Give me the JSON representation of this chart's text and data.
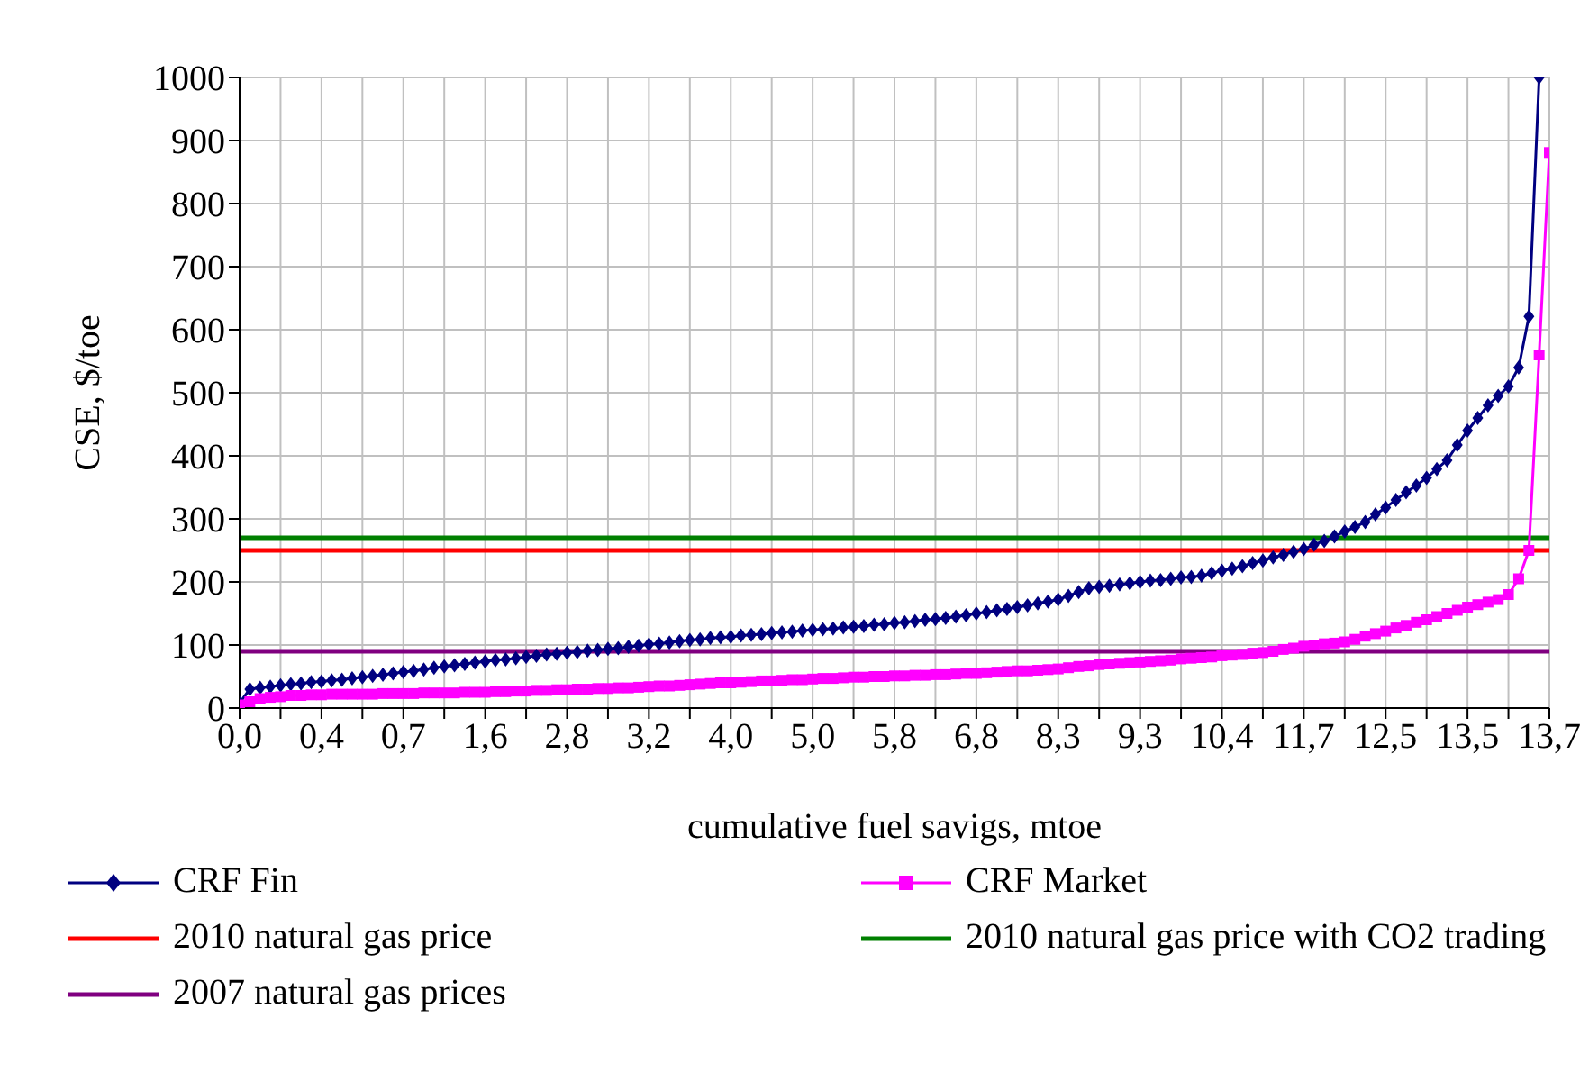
{
  "chart_data": {
    "type": "line",
    "categories": [
      "0,0",
      null,
      null,
      null,
      null,
      null,
      null,
      null,
      "0,4",
      null,
      null,
      null,
      null,
      null,
      null,
      null,
      "0,7",
      null,
      null,
      null,
      null,
      null,
      null,
      null,
      "1,6",
      null,
      null,
      null,
      null,
      null,
      null,
      null,
      "2,8",
      null,
      null,
      null,
      null,
      null,
      null,
      null,
      "3,2",
      null,
      null,
      null,
      null,
      null,
      null,
      null,
      "4,0",
      null,
      null,
      null,
      null,
      null,
      null,
      null,
      "5,0",
      null,
      null,
      null,
      null,
      null,
      null,
      null,
      "5,8",
      null,
      null,
      null,
      null,
      null,
      null,
      null,
      "6,8",
      null,
      null,
      null,
      null,
      null,
      null,
      null,
      "8,3",
      null,
      null,
      null,
      null,
      null,
      null,
      null,
      "9,3",
      null,
      null,
      null,
      null,
      null,
      null,
      null,
      "10,4",
      null,
      null,
      null,
      null,
      null,
      null,
      null,
      "11,7",
      null,
      null,
      null,
      null,
      null,
      null,
      null,
      "12,5",
      null,
      null,
      null,
      null,
      null,
      null,
      null,
      "13,5",
      null,
      null,
      null,
      null,
      null,
      null,
      null,
      "13,7"
    ],
    "series": [
      {
        "name": "CRF Fin",
        "color": "#000080",
        "marker": "diamond",
        "values": [
          8,
          30,
          32,
          34,
          36,
          38,
          39,
          41,
          42,
          44,
          45,
          47,
          49,
          51,
          53,
          55,
          57,
          59,
          61,
          64,
          66,
          68,
          70,
          72,
          74,
          76,
          77,
          79,
          81,
          83,
          85,
          86,
          88,
          89,
          91,
          92,
          94,
          95,
          97,
          99,
          101,
          102,
          104,
          106,
          108,
          109,
          111,
          112,
          113,
          115,
          116,
          117,
          119,
          120,
          121,
          123,
          124,
          125,
          126,
          128,
          129,
          130,
          132,
          133,
          135,
          136,
          138,
          140,
          141,
          143,
          145,
          147,
          150,
          152,
          155,
          157,
          160,
          163,
          166,
          169,
          172,
          178,
          184,
          190,
          192,
          194,
          196,
          198,
          200,
          202,
          203,
          205,
          207,
          208,
          210,
          214,
          218,
          221,
          225,
          230,
          234,
          239,
          243,
          248,
          252,
          259,
          265,
          272,
          280,
          287,
          295,
          307,
          318,
          330,
          342,
          353,
          365,
          379,
          393,
          417,
          440,
          460,
          480,
          495,
          510,
          540,
          621,
          1000,
          null
        ]
      },
      {
        "name": "CRF Market",
        "color": "#ff00ff",
        "marker": "square",
        "values": [
          5,
          10,
          15,
          17,
          18,
          20,
          20,
          21,
          21,
          22,
          22,
          22,
          22,
          22,
          23,
          23,
          23,
          23,
          24,
          24,
          24,
          24,
          25,
          25,
          25,
          26,
          26,
          27,
          27,
          28,
          28,
          29,
          29,
          30,
          30,
          31,
          31,
          32,
          32,
          33,
          34,
          35,
          35,
          36,
          37,
          38,
          39,
          40,
          40,
          41,
          42,
          43,
          43,
          44,
          45,
          45,
          46,
          47,
          47,
          48,
          49,
          49,
          50,
          50,
          51,
          51,
          52,
          52,
          53,
          53,
          54,
          55,
          55,
          56,
          57,
          58,
          59,
          59,
          60,
          61,
          62,
          64,
          66,
          67,
          69,
          70,
          71,
          72,
          73,
          74,
          75,
          76,
          78,
          79,
          80,
          81,
          83,
          84,
          85,
          87,
          88,
          90,
          93,
          95,
          98,
          100,
          102,
          103,
          105,
          109,
          114,
          118,
          122,
          127,
          131,
          136,
          140,
          145,
          150,
          155,
          160,
          164,
          168,
          172,
          180,
          205,
          250,
          560,
          881
        ]
      }
    ],
    "ref_lines": [
      {
        "axis": "y",
        "value": 250,
        "label": "2010 natural gas price",
        "color": "#ff0000"
      },
      {
        "axis": "y",
        "value": 270,
        "label": "2010 natural gas price with CO2 trading",
        "color": "#008000"
      },
      {
        "axis": "y",
        "value": 90,
        "label": "2007 natural gas prices",
        "color": "#800080"
      }
    ],
    "xlabel": "cumulative fuel savigs, mtoe",
    "ylabel": "CSE,  $/toe",
    "ylim": [
      0,
      1000
    ],
    "yticks": [
      0,
      100,
      200,
      300,
      400,
      500,
      600,
      700,
      800,
      900,
      1000
    ],
    "grid": true,
    "legend": "bottom"
  }
}
